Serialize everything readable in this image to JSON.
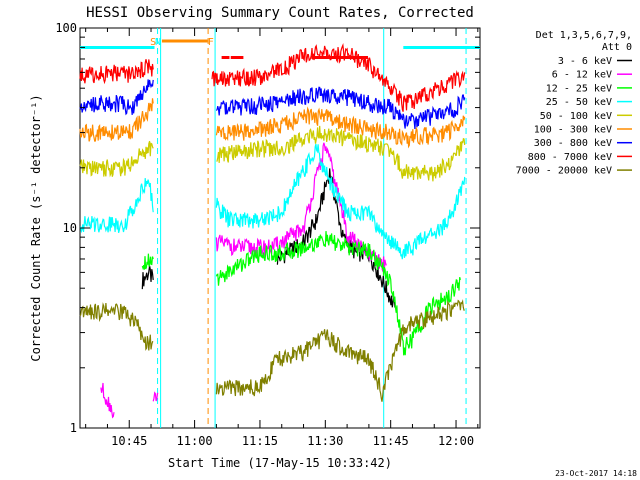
{
  "chart_data": {
    "type": "line",
    "title": "HESSI Observing Summary Count Rates, Corrected",
    "xlabel": "Start Time (17-May-15 10:33:42)",
    "ylabel": "Corrected Count Rate (s⁻¹ detector⁻¹)",
    "y_scale": "log",
    "ylim": [
      1,
      100
    ],
    "xlim_min": [
      33.7,
      125.5
    ],
    "x_unit": "minutes after 10:00 UT",
    "x_ticks": [
      {
        "label": "10:45",
        "value": 45
      },
      {
        "label": "11:00",
        "value": 60
      },
      {
        "label": "11:15",
        "value": 75
      },
      {
        "label": "11:30",
        "value": 90
      },
      {
        "label": "11:45",
        "value": 105
      },
      {
        "label": "12:00",
        "value": 120
      }
    ],
    "y_ticks": [
      {
        "label": "1",
        "value": 1
      },
      {
        "label": "10",
        "value": 10
      },
      {
        "label": "100",
        "value": 100
      }
    ],
    "legend": {
      "placement": "right",
      "header_line1": "Det 1,3,5,6,7,9,",
      "header_line2": "Att 0"
    },
    "annotations": [
      {
        "label": "S",
        "x": 50.5,
        "color": "#ff8c00"
      },
      {
        "label": "N",
        "x": 51.6,
        "color": "#00ffff"
      },
      {
        "label": "F",
        "x": 63.7,
        "color": "#ff8c00"
      }
    ],
    "bars": [
      {
        "name": "saa",
        "color": "#ff8c00",
        "x": [
          52.5,
          63.0
        ]
      },
      {
        "name": "night1",
        "color": "#00ffff",
        "x": [
          33.7,
          50.8
        ]
      },
      {
        "name": "night2",
        "color": "#00ffff",
        "x": [
          107.9,
          125.5
        ]
      },
      {
        "name": "flare",
        "color": "#ff0000",
        "x": [
          66.2,
          68.0
        ]
      },
      {
        "name": "flare",
        "color": "#ff0000",
        "x": [
          68.3,
          71.2
        ]
      },
      {
        "name": "flare",
        "color": "#ff0000",
        "x": [
          86.8,
          99.8
        ]
      }
    ],
    "vlines": [
      {
        "name": "dashed",
        "color": "#00ffff",
        "style": "dash",
        "x": 51.5
      },
      {
        "name": "solid",
        "color": "#00ffff",
        "style": "solid",
        "x": 52.2
      },
      {
        "name": "dashed",
        "color": "#ff8c00",
        "style": "dash",
        "x": 63.1
      },
      {
        "name": "solid",
        "color": "#00ffff",
        "style": "solid",
        "x": 64.7
      },
      {
        "name": "solid",
        "color": "#00ffff",
        "style": "solid",
        "x": 103.4
      },
      {
        "name": "dashed",
        "color": "#00ffff",
        "style": "dash",
        "x": 122.3
      }
    ],
    "series": [
      {
        "name": "3 - 6 keV",
        "color": "#000000",
        "segments": [
          [
            [
              48,
              5.5
            ],
            [
              49.5,
              6.0
            ],
            [
              50.5,
              5.5
            ]
          ],
          [
            [
              79,
              7.0
            ],
            [
              85,
              8.5
            ],
            [
              88,
              11
            ],
            [
              90,
              16
            ],
            [
              91,
              19
            ],
            [
              92,
              15
            ],
            [
              94,
              9
            ],
            [
              97,
              7.5
            ],
            [
              100,
              7.5
            ],
            [
              103,
              5.5
            ],
            [
              106,
              4.0
            ]
          ]
        ]
      },
      {
        "name": "6 - 12 keV",
        "color": "#ff00ff",
        "segments": [
          [
            [
              50.5,
              1.3
            ],
            [
              51.5,
              1.5
            ]
          ],
          [
            [
              65,
              8.5
            ],
            [
              70,
              8.0
            ],
            [
              78,
              8.0
            ],
            [
              85,
              10
            ],
            [
              88,
              18
            ],
            [
              90,
              26
            ],
            [
              92,
              18
            ],
            [
              95,
              9.5
            ],
            [
              98,
              8.0
            ],
            [
              101,
              7.0
            ],
            [
              104,
              6.5
            ]
          ],
          [
            [
              38.5,
              1.6
            ],
            [
              41.5,
              1.2
            ]
          ]
        ]
      },
      {
        "name": "12 - 25 keV",
        "color": "#00ff00",
        "segments": [
          [
            [
              48,
              6.8
            ],
            [
              50.5,
              7.0
            ]
          ],
          [
            [
              65,
              5.5
            ],
            [
              70,
              6.5
            ],
            [
              75,
              7.5
            ],
            [
              80,
              7.5
            ],
            [
              85,
              8.0
            ],
            [
              90,
              8.8
            ],
            [
              95,
              8.0
            ],
            [
              100,
              7.8
            ],
            [
              105,
              5.5
            ],
            [
              108,
              2.5
            ],
            [
              110,
              2.8
            ],
            [
              114,
              4.0
            ],
            [
              118,
              4.5
            ],
            [
              121,
              5.5
            ]
          ]
        ]
      },
      {
        "name": "25 - 50 keV",
        "color": "#00ffff",
        "segments": [
          [
            [
              33.7,
              10.5
            ],
            [
              44,
              10.5
            ],
            [
              47.5,
              15
            ],
            [
              49.5,
              18
            ],
            [
              50.5,
              12
            ]
          ],
          [
            [
              65,
              13
            ],
            [
              68,
              11
            ],
            [
              75,
              11
            ],
            [
              80,
              12
            ],
            [
              84,
              18
            ],
            [
              88,
              25
            ],
            [
              90,
              19
            ],
            [
              95,
              12
            ],
            [
              100,
              12
            ],
            [
              102,
              10
            ],
            [
              108,
              7.5
            ],
            [
              113,
              9.0
            ],
            [
              117,
              10
            ],
            [
              120,
              13
            ],
            [
              122,
              18
            ]
          ]
        ]
      },
      {
        "name": "50 - 100 keV",
        "color": "#cccc00",
        "segments": [
          [
            [
              33.7,
              20
            ],
            [
              44,
              20
            ],
            [
              46.5,
              22
            ],
            [
              49,
              25
            ],
            [
              50.5,
              25
            ]
          ],
          [
            [
              65,
              23
            ],
            [
              70,
              24
            ],
            [
              75,
              25
            ],
            [
              80,
              25
            ],
            [
              85,
              28
            ],
            [
              90,
              30
            ],
            [
              95,
              28
            ],
            [
              100,
              26
            ],
            [
              105,
              25
            ],
            [
              108,
              19
            ],
            [
              112,
              19
            ],
            [
              115,
              19
            ],
            [
              118,
              21
            ],
            [
              122,
              26
            ]
          ]
        ]
      },
      {
        "name": "100 - 300 keV",
        "color": "#ff8c00",
        "segments": [
          [
            [
              33.7,
              30
            ],
            [
              43,
              30
            ],
            [
              46,
              31
            ],
            [
              49,
              37
            ],
            [
              50.5,
              42
            ]
          ],
          [
            [
              65,
              30
            ],
            [
              70,
              30
            ],
            [
              75,
              31
            ],
            [
              80,
              33
            ],
            [
              85,
              36
            ],
            [
              90,
              36
            ],
            [
              95,
              33
            ],
            [
              100,
              31
            ],
            [
              105,
              30
            ],
            [
              108,
              28
            ],
            [
              112,
              29
            ],
            [
              116,
              29
            ],
            [
              120,
              32
            ],
            [
              122,
              36
            ]
          ]
        ]
      },
      {
        "name": "300 - 800 keV",
        "color": "#0000ff",
        "segments": [
          [
            [
              33.7,
              42
            ],
            [
              43,
              42
            ],
            [
              46,
              40
            ],
            [
              49,
              52
            ],
            [
              50.5,
              55
            ]
          ],
          [
            [
              65,
              40
            ],
            [
              70,
              40
            ],
            [
              75,
              41
            ],
            [
              80,
              43
            ],
            [
              85,
              46
            ],
            [
              90,
              47
            ],
            [
              95,
              45
            ],
            [
              100,
              42
            ],
            [
              105,
              40
            ],
            [
              108,
              34
            ],
            [
              112,
              35
            ],
            [
              116,
              37
            ],
            [
              120,
              40
            ],
            [
              122,
              45
            ]
          ]
        ]
      },
      {
        "name": "800 - 7000 keV",
        "color": "#ff0000",
        "segments": [
          [
            [
              33.7,
              58
            ],
            [
              43,
              60
            ],
            [
              46,
              58
            ],
            [
              49,
              65
            ],
            [
              50.5,
              62
            ]
          ],
          [
            [
              64,
              55
            ],
            [
              70,
              56
            ],
            [
              75,
              57
            ],
            [
              80,
              62
            ],
            [
              85,
              73
            ],
            [
              90,
              75
            ],
            [
              95,
              75
            ],
            [
              100,
              65
            ],
            [
              105,
              50
            ],
            [
              108,
              42
            ],
            [
              112,
              45
            ],
            [
              116,
              50
            ],
            [
              120,
              55
            ],
            [
              122,
              60
            ]
          ]
        ]
      },
      {
        "name": "7000 - 20000 keV",
        "color": "#808000",
        "segments": [
          [
            [
              33.7,
              3.9
            ],
            [
              44,
              3.8
            ],
            [
              47,
              3.2
            ],
            [
              48.5,
              2.6
            ],
            [
              50.5,
              2.7
            ]
          ],
          [
            [
              65,
              1.6
            ],
            [
              75,
              1.6
            ],
            [
              79,
              2.2
            ],
            [
              85,
              2.4
            ],
            [
              90,
              2.9
            ],
            [
              95,
              2.4
            ],
            [
              100,
              2.2
            ],
            [
              103,
              1.5
            ],
            [
              108,
              3.2
            ],
            [
              113,
              3.5
            ],
            [
              117,
              3.8
            ],
            [
              120,
              4.0
            ],
            [
              122,
              3.9
            ]
          ]
        ]
      }
    ],
    "timestamp": "23-Oct-2017 14:18"
  }
}
